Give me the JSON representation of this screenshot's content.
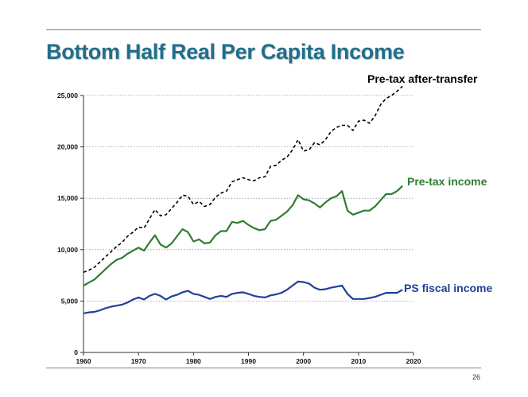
{
  "slide": {
    "title": "Bottom Half Real Per Capita Income",
    "page_number": "26"
  },
  "chart_data": {
    "type": "line",
    "title": "Bottom Half Real Per Capita Income",
    "xlabel": "",
    "ylabel": "",
    "xlim": [
      1960,
      2020
    ],
    "ylim": [
      0,
      25000
    ],
    "x_ticks": [
      "1960",
      "1970",
      "1980",
      "1990",
      "2000",
      "2010",
      "2020"
    ],
    "y_ticks": [
      "0",
      "5,000",
      "10,000",
      "15,000",
      "20,000",
      "25,000"
    ],
    "grid": "horizontal dotted",
    "x": [
      1960,
      1961,
      1962,
      1963,
      1964,
      1965,
      1966,
      1967,
      1968,
      1969,
      1970,
      1971,
      1972,
      1973,
      1974,
      1975,
      1976,
      1977,
      1978,
      1979,
      1980,
      1981,
      1982,
      1983,
      1984,
      1985,
      1986,
      1987,
      1988,
      1989,
      1990,
      1991,
      1992,
      1993,
      1994,
      1995,
      1996,
      1997,
      1998,
      1999,
      2000,
      2001,
      2002,
      2003,
      2004,
      2005,
      2006,
      2007,
      2008,
      2009,
      2010,
      2011,
      2012,
      2013,
      2014,
      2015,
      2016,
      2017,
      2018
    ],
    "series": [
      {
        "name": "Pre-tax after-transfer",
        "color": "#000000",
        "style": "dashed",
        "values": [
          7800,
          8000,
          8300,
          8800,
          9300,
          9800,
          10300,
          10700,
          11300,
          11700,
          12200,
          12100,
          13000,
          13900,
          13300,
          13400,
          14000,
          14600,
          15300,
          15200,
          14400,
          14700,
          14200,
          14400,
          15100,
          15500,
          15700,
          16600,
          16800,
          17000,
          16800,
          16700,
          17000,
          17100,
          18100,
          18200,
          18700,
          19000,
          19700,
          20700,
          19600,
          19700,
          20400,
          20200,
          20700,
          21500,
          21900,
          22100,
          22100,
          21600,
          22500,
          22600,
          22300,
          23000,
          24100,
          24700,
          25000,
          25400,
          25900
        ]
      },
      {
        "name": "Pre-tax income",
        "color": "#2e7d32",
        "style": "solid",
        "values": [
          6500,
          6800,
          7100,
          7600,
          8100,
          8600,
          9000,
          9200,
          9600,
          9900,
          10200,
          9900,
          10700,
          11400,
          10500,
          10200,
          10600,
          11300,
          12000,
          11700,
          10800,
          11000,
          10600,
          10700,
          11400,
          11800,
          11800,
          12700,
          12600,
          12800,
          12400,
          12100,
          11900,
          12000,
          12800,
          12900,
          13300,
          13700,
          14300,
          15300,
          14900,
          14800,
          14500,
          14100,
          14600,
          15000,
          15200,
          15700,
          13800,
          13400,
          13600,
          13800,
          13800,
          14200,
          14800,
          15400,
          15400,
          15700,
          16200
        ]
      },
      {
        "name": "PS fiscal income",
        "color": "#1f3f99",
        "style": "solid",
        "values": [
          3800,
          3900,
          3950,
          4100,
          4300,
          4450,
          4550,
          4650,
          4850,
          5150,
          5350,
          5150,
          5500,
          5700,
          5500,
          5150,
          5450,
          5600,
          5850,
          6000,
          5700,
          5600,
          5400,
          5200,
          5400,
          5500,
          5400,
          5700,
          5800,
          5850,
          5700,
          5500,
          5400,
          5350,
          5550,
          5650,
          5800,
          6100,
          6500,
          6900,
          6850,
          6700,
          6300,
          6100,
          6150,
          6300,
          6400,
          6500,
          5700,
          5200,
          5200,
          5200,
          5300,
          5400,
          5600,
          5800,
          5800,
          5800,
          6100
        ]
      }
    ],
    "labels": {
      "after_transfer": "Pre-tax after-transfer",
      "pretax": "Pre-tax income",
      "ps_fiscal": "PS fiscal income"
    }
  }
}
